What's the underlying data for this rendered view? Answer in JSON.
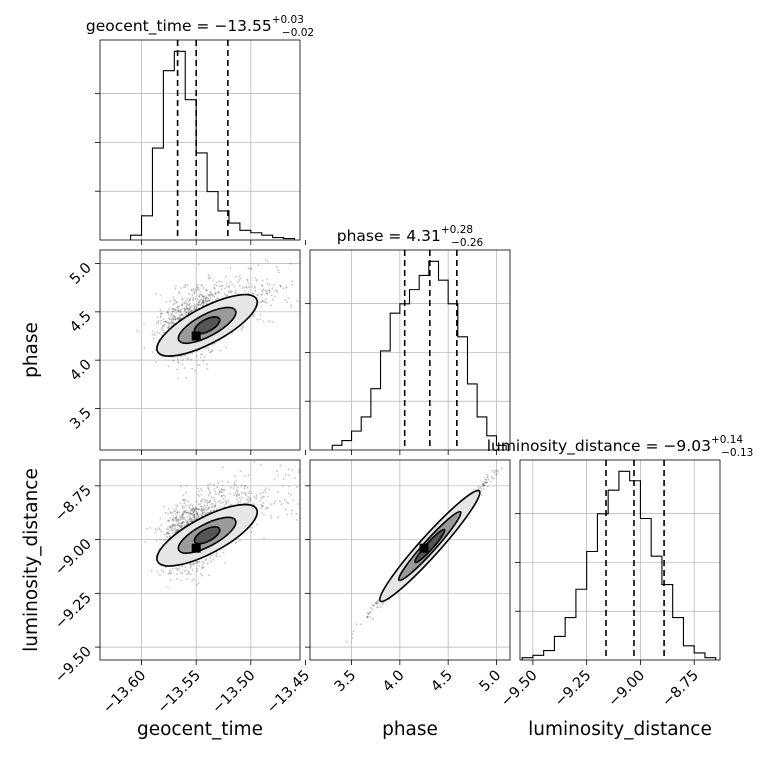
{
  "chart_data": {
    "type": "corner",
    "parameters": [
      {
        "name": "geocent_time",
        "title": "geocent_time = −13.55",
        "title_sup": "+0.03",
        "title_sub": "−0.02",
        "median": -13.55,
        "quantile_lines": [
          -13.567,
          -13.55,
          -13.521
        ],
        "range": [
          -13.638,
          -13.455
        ],
        "ticks": [
          -13.6,
          -13.55,
          -13.5,
          -13.45
        ],
        "tick_labels": [
          "−13.60",
          "−13.55",
          "−13.50",
          "−13.45"
        ],
        "hist_bin_edges": [
          -13.61,
          -13.6,
          -13.59,
          -13.58,
          -13.57,
          -13.56,
          -13.55,
          -13.54,
          -13.53,
          -13.52,
          -13.51,
          -13.5,
          -13.49,
          -13.48,
          -13.47,
          -13.46
        ],
        "hist_counts": [
          0.1,
          0.5,
          1.9,
          3.5,
          3.9,
          2.9,
          1.8,
          1.0,
          0.6,
          0.35,
          0.2,
          0.15,
          0.1,
          0.05,
          0.03
        ]
      },
      {
        "name": "phase",
        "title": "phase = 4.31",
        "title_sup": "+0.28",
        "title_sub": "−0.26",
        "median": 4.31,
        "quantile_lines": [
          4.05,
          4.31,
          4.59
        ],
        "range": [
          3.07,
          5.14
        ],
        "ticks": [
          3.5,
          4.0,
          4.5,
          5.0
        ],
        "tick_labels": [
          "3.5",
          "4.0",
          "4.5",
          "5.0"
        ],
        "hist_bin_edges": [
          3.3,
          3.4,
          3.5,
          3.6,
          3.7,
          3.8,
          3.9,
          4.0,
          4.1,
          4.2,
          4.3,
          4.4,
          4.5,
          4.6,
          4.7,
          4.8,
          4.9,
          5.0,
          5.1
        ],
        "hist_counts": [
          0.1,
          0.2,
          0.4,
          0.7,
          1.3,
          2.1,
          2.9,
          3.1,
          3.4,
          3.7,
          4.0,
          3.6,
          3.1,
          2.4,
          1.4,
          0.7,
          0.3,
          0.1
        ]
      },
      {
        "name": "luminosity_distance",
        "title": "luminosity_distance = −9.03",
        "title_sup": "+0.14",
        "title_sub": "−0.13",
        "median": -9.03,
        "quantile_lines": [
          -9.16,
          -9.03,
          -8.89
        ],
        "range": [
          -9.56,
          -8.63
        ],
        "ticks": [
          -9.5,
          -9.25,
          -9.0,
          -8.75
        ],
        "tick_labels": [
          "−9.50",
          "−9.25",
          "−9.00",
          "−8.75"
        ],
        "hist_bin_edges": [
          -9.55,
          -9.5,
          -9.45,
          -9.4,
          -9.35,
          -9.3,
          -9.25,
          -9.2,
          -9.15,
          -9.1,
          -9.05,
          -9.0,
          -8.95,
          -8.9,
          -8.85,
          -8.8,
          -8.75,
          -8.7,
          -8.65
        ],
        "hist_counts": [
          0.05,
          0.1,
          0.2,
          0.5,
          0.9,
          1.5,
          2.3,
          3.1,
          3.6,
          4.0,
          3.8,
          3.0,
          2.2,
          1.6,
          0.9,
          0.3,
          0.15,
          0.05
        ]
      }
    ],
    "pairs": [
      {
        "x": "geocent_time",
        "y": "phase"
      },
      {
        "x": "geocent_time",
        "y": "luminosity_distance"
      },
      {
        "x": "phase",
        "y": "luminosity_distance"
      }
    ],
    "grid": true,
    "colors": {
      "line": "#000000",
      "grid": "#b0b0b0",
      "points": "#555555"
    }
  }
}
